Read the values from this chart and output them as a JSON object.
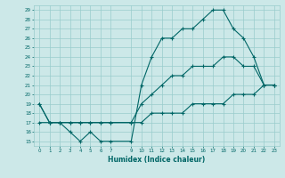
{
  "xlabel": "Humidex (Indice chaleur)",
  "background_color": "#cce8e8",
  "grid_color": "#99cccc",
  "line_color": "#006666",
  "xlim": [
    -0.5,
    23.5
  ],
  "ylim": [
    14.5,
    29.5
  ],
  "xticks": [
    0,
    1,
    2,
    3,
    4,
    5,
    6,
    7,
    9,
    10,
    11,
    12,
    13,
    14,
    15,
    16,
    17,
    18,
    19,
    20,
    21,
    22,
    23
  ],
  "yticks": [
    15,
    16,
    17,
    18,
    19,
    20,
    21,
    22,
    23,
    24,
    25,
    26,
    27,
    28,
    29
  ],
  "hours": [
    0,
    1,
    2,
    3,
    4,
    5,
    6,
    7,
    9,
    10,
    11,
    12,
    13,
    14,
    15,
    16,
    17,
    18,
    19,
    20,
    21,
    22,
    23
  ],
  "line_max": [
    19,
    17,
    17,
    16,
    15,
    16,
    15,
    15,
    15,
    21,
    24,
    26,
    26,
    27,
    27,
    28,
    29,
    29,
    27,
    26,
    24,
    21,
    21
  ],
  "line_mean": [
    19,
    17,
    17,
    17,
    17,
    17,
    17,
    17,
    17,
    19,
    20,
    21,
    22,
    22,
    23,
    23,
    23,
    24,
    24,
    23,
    23,
    21,
    21
  ],
  "line_min": [
    17,
    17,
    17,
    17,
    17,
    17,
    17,
    17,
    17,
    17,
    18,
    18,
    18,
    18,
    19,
    19,
    19,
    19,
    20,
    20,
    20,
    21,
    21
  ],
  "tick_fontsize": 4.0,
  "xlabel_fontsize": 5.5
}
